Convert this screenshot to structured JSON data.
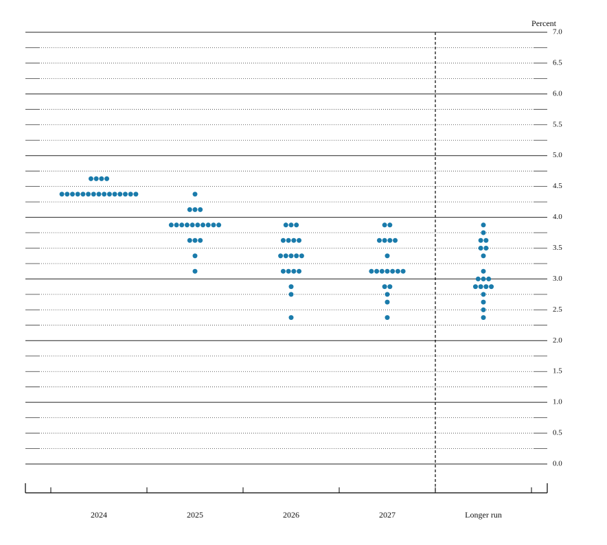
{
  "chart_data": {
    "type": "dot",
    "y_label": "Percent",
    "categories": [
      "2024",
      "2025",
      "2026",
      "2027",
      "Longer run"
    ],
    "levels": [
      [
        4.625,
        4.375
      ],
      [
        4.375,
        4.125,
        3.875,
        3.625,
        3.375,
        3.125
      ],
      [
        3.875,
        3.625,
        3.375,
        3.125,
        2.875,
        2.75,
        2.375
      ],
      [
        3.875,
        3.625,
        3.375,
        3.125,
        2.875,
        2.75,
        2.625,
        2.375
      ],
      [
        3.875,
        3.75,
        3.625,
        3.5,
        3.375,
        3.125,
        3.0,
        2.875,
        2.75,
        2.625,
        2.5,
        2.375
      ]
    ],
    "counts": [
      [
        4,
        15
      ],
      [
        1,
        3,
        10,
        3,
        1,
        1
      ],
      [
        3,
        4,
        5,
        4,
        1,
        1,
        1
      ],
      [
        2,
        4,
        1,
        7,
        2,
        1,
        1,
        1
      ],
      [
        1,
        1,
        2,
        2,
        1,
        1,
        3,
        4,
        1,
        1,
        1,
        1
      ]
    ],
    "color": "#1a7bab",
    "ylim": [
      0,
      7
    ],
    "yticks": [
      {
        "value": 0,
        "label": "0.0"
      },
      {
        "value": 0.5,
        "label": "0.5"
      },
      {
        "value": 1,
        "label": "1.0"
      },
      {
        "value": 1.5,
        "label": "1.5"
      },
      {
        "value": 2,
        "label": "2.0"
      },
      {
        "value": 2.5,
        "label": "2.5"
      },
      {
        "value": 3,
        "label": "3.0"
      },
      {
        "value": 3.5,
        "label": "3.5"
      },
      {
        "value": 4,
        "label": "4.0"
      },
      {
        "value": 4.5,
        "label": "4.5"
      },
      {
        "value": 5,
        "label": "5.0"
      },
      {
        "value": 5.5,
        "label": "5.5"
      },
      {
        "value": 6,
        "label": "6.0"
      },
      {
        "value": 6.5,
        "label": "6.5"
      },
      {
        "value": 7,
        "label": "7.0"
      }
    ]
  }
}
